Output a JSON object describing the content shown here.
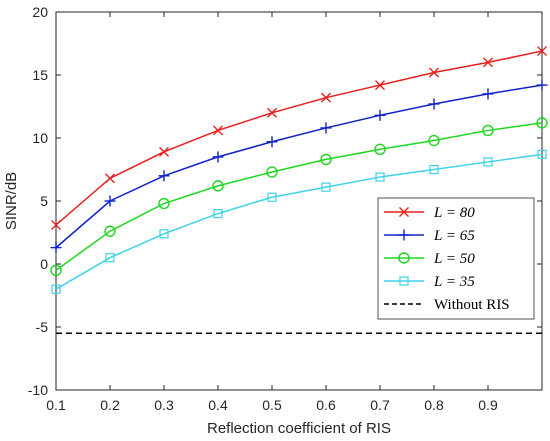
{
  "chart_data": {
    "type": "line",
    "title": "",
    "xlabel": "Reflection coefficient of RIS",
    "ylabel": "SINR/dB",
    "xlim": [
      0.1,
      1.0
    ],
    "ylim": [
      -10,
      20
    ],
    "xticks": [
      "0.1",
      "0.2",
      "0.3",
      "0.4",
      "0.5",
      "0.6",
      "0.7",
      "0.8",
      "0.9"
    ],
    "yticks": [
      "-10",
      "-5",
      "0",
      "5",
      "10",
      "15",
      "20"
    ],
    "grid": false,
    "legend_position": "lower-right",
    "x": [
      0.1,
      0.2,
      0.3,
      0.4,
      0.5,
      0.6,
      0.7,
      0.8,
      0.9,
      1.0
    ],
    "series": [
      {
        "name": "L = 80",
        "label_var": "L",
        "label_eq": "=",
        "label_val": "80",
        "color": "#e8201c",
        "marker": "x",
        "values": [
          3.1,
          6.8,
          8.9,
          10.6,
          12.0,
          13.2,
          14.2,
          15.2,
          16.0,
          16.9
        ]
      },
      {
        "name": "L = 65",
        "label_var": "L",
        "label_eq": "=",
        "label_val": "65",
        "color": "#0f22c8",
        "marker": "plus",
        "values": [
          1.3,
          5.0,
          7.0,
          8.5,
          9.7,
          10.8,
          11.8,
          12.7,
          13.5,
          14.2
        ]
      },
      {
        "name": "L = 50",
        "label_var": "L",
        "label_eq": "=",
        "label_val": "50",
        "color": "#1ed81e",
        "marker": "circle",
        "values": [
          -0.5,
          2.6,
          4.8,
          6.2,
          7.3,
          8.3,
          9.1,
          9.8,
          10.6,
          11.2
        ]
      },
      {
        "name": "L = 35",
        "label_var": "L",
        "label_eq": "=",
        "label_val": "35",
        "color": "#3ed3e8",
        "marker": "square",
        "values": [
          -2.0,
          0.5,
          2.4,
          4.0,
          5.3,
          6.1,
          6.9,
          7.5,
          8.1,
          8.7
        ]
      }
    ],
    "baseline": {
      "name": "Without RIS",
      "value": -5.5,
      "color": "#000000",
      "style": "dashed"
    }
  }
}
